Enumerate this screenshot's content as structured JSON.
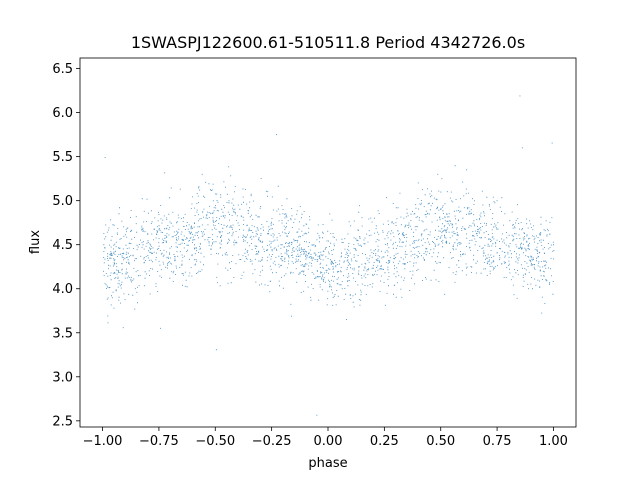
{
  "chart_data": {
    "type": "scatter",
    "title": "1SWASPJ122600.61-510511.8 Period 4342726.0s",
    "xlabel": "phase",
    "ylabel": "flux",
    "xlim": [
      -1.1,
      1.1
    ],
    "ylim": [
      2.43,
      6.62
    ],
    "xticks": [
      -1.0,
      -0.75,
      -0.5,
      -0.25,
      0.0,
      0.25,
      0.5,
      0.75,
      1.0
    ],
    "xtick_labels": [
      "−1.00",
      "−0.75",
      "−0.50",
      "−0.25",
      "0.00",
      "0.25",
      "0.50",
      "0.75",
      "1.00"
    ],
    "yticks": [
      2.5,
      3.0,
      3.5,
      4.0,
      4.5,
      5.0,
      5.5,
      6.0,
      6.5
    ],
    "ytick_labels": [
      "2.5",
      "3.0",
      "3.5",
      "4.0",
      "4.5",
      "5.0",
      "5.5",
      "6.0",
      "6.5"
    ],
    "grid": false,
    "marker_color": "#1f77b4",
    "series": [
      {
        "points_description_note": "",
        "phase_range": [
          -1.0,
          1.0
        ],
        "profile": {
          "phase": [
            -1.0,
            -0.9,
            -0.8,
            -0.7,
            -0.6,
            -0.5,
            -0.4,
            -0.3,
            -0.2,
            -0.1,
            0.0,
            0.1,
            0.2,
            0.3,
            0.4,
            0.5,
            0.6,
            0.7,
            0.8,
            0.9,
            1.0
          ],
          "median_flux": [
            4.3,
            4.35,
            4.45,
            4.5,
            4.6,
            4.7,
            4.65,
            4.6,
            4.5,
            4.4,
            4.25,
            4.3,
            4.4,
            4.45,
            4.6,
            4.7,
            4.65,
            4.6,
            4.5,
            4.4,
            4.3
          ],
          "spread": [
            0.45,
            0.45,
            0.45,
            0.45,
            0.45,
            0.5,
            0.5,
            0.45,
            0.45,
            0.4,
            0.35,
            0.4,
            0.45,
            0.45,
            0.45,
            0.5,
            0.5,
            0.45,
            0.45,
            0.45,
            0.45
          ]
        }
      }
    ]
  }
}
